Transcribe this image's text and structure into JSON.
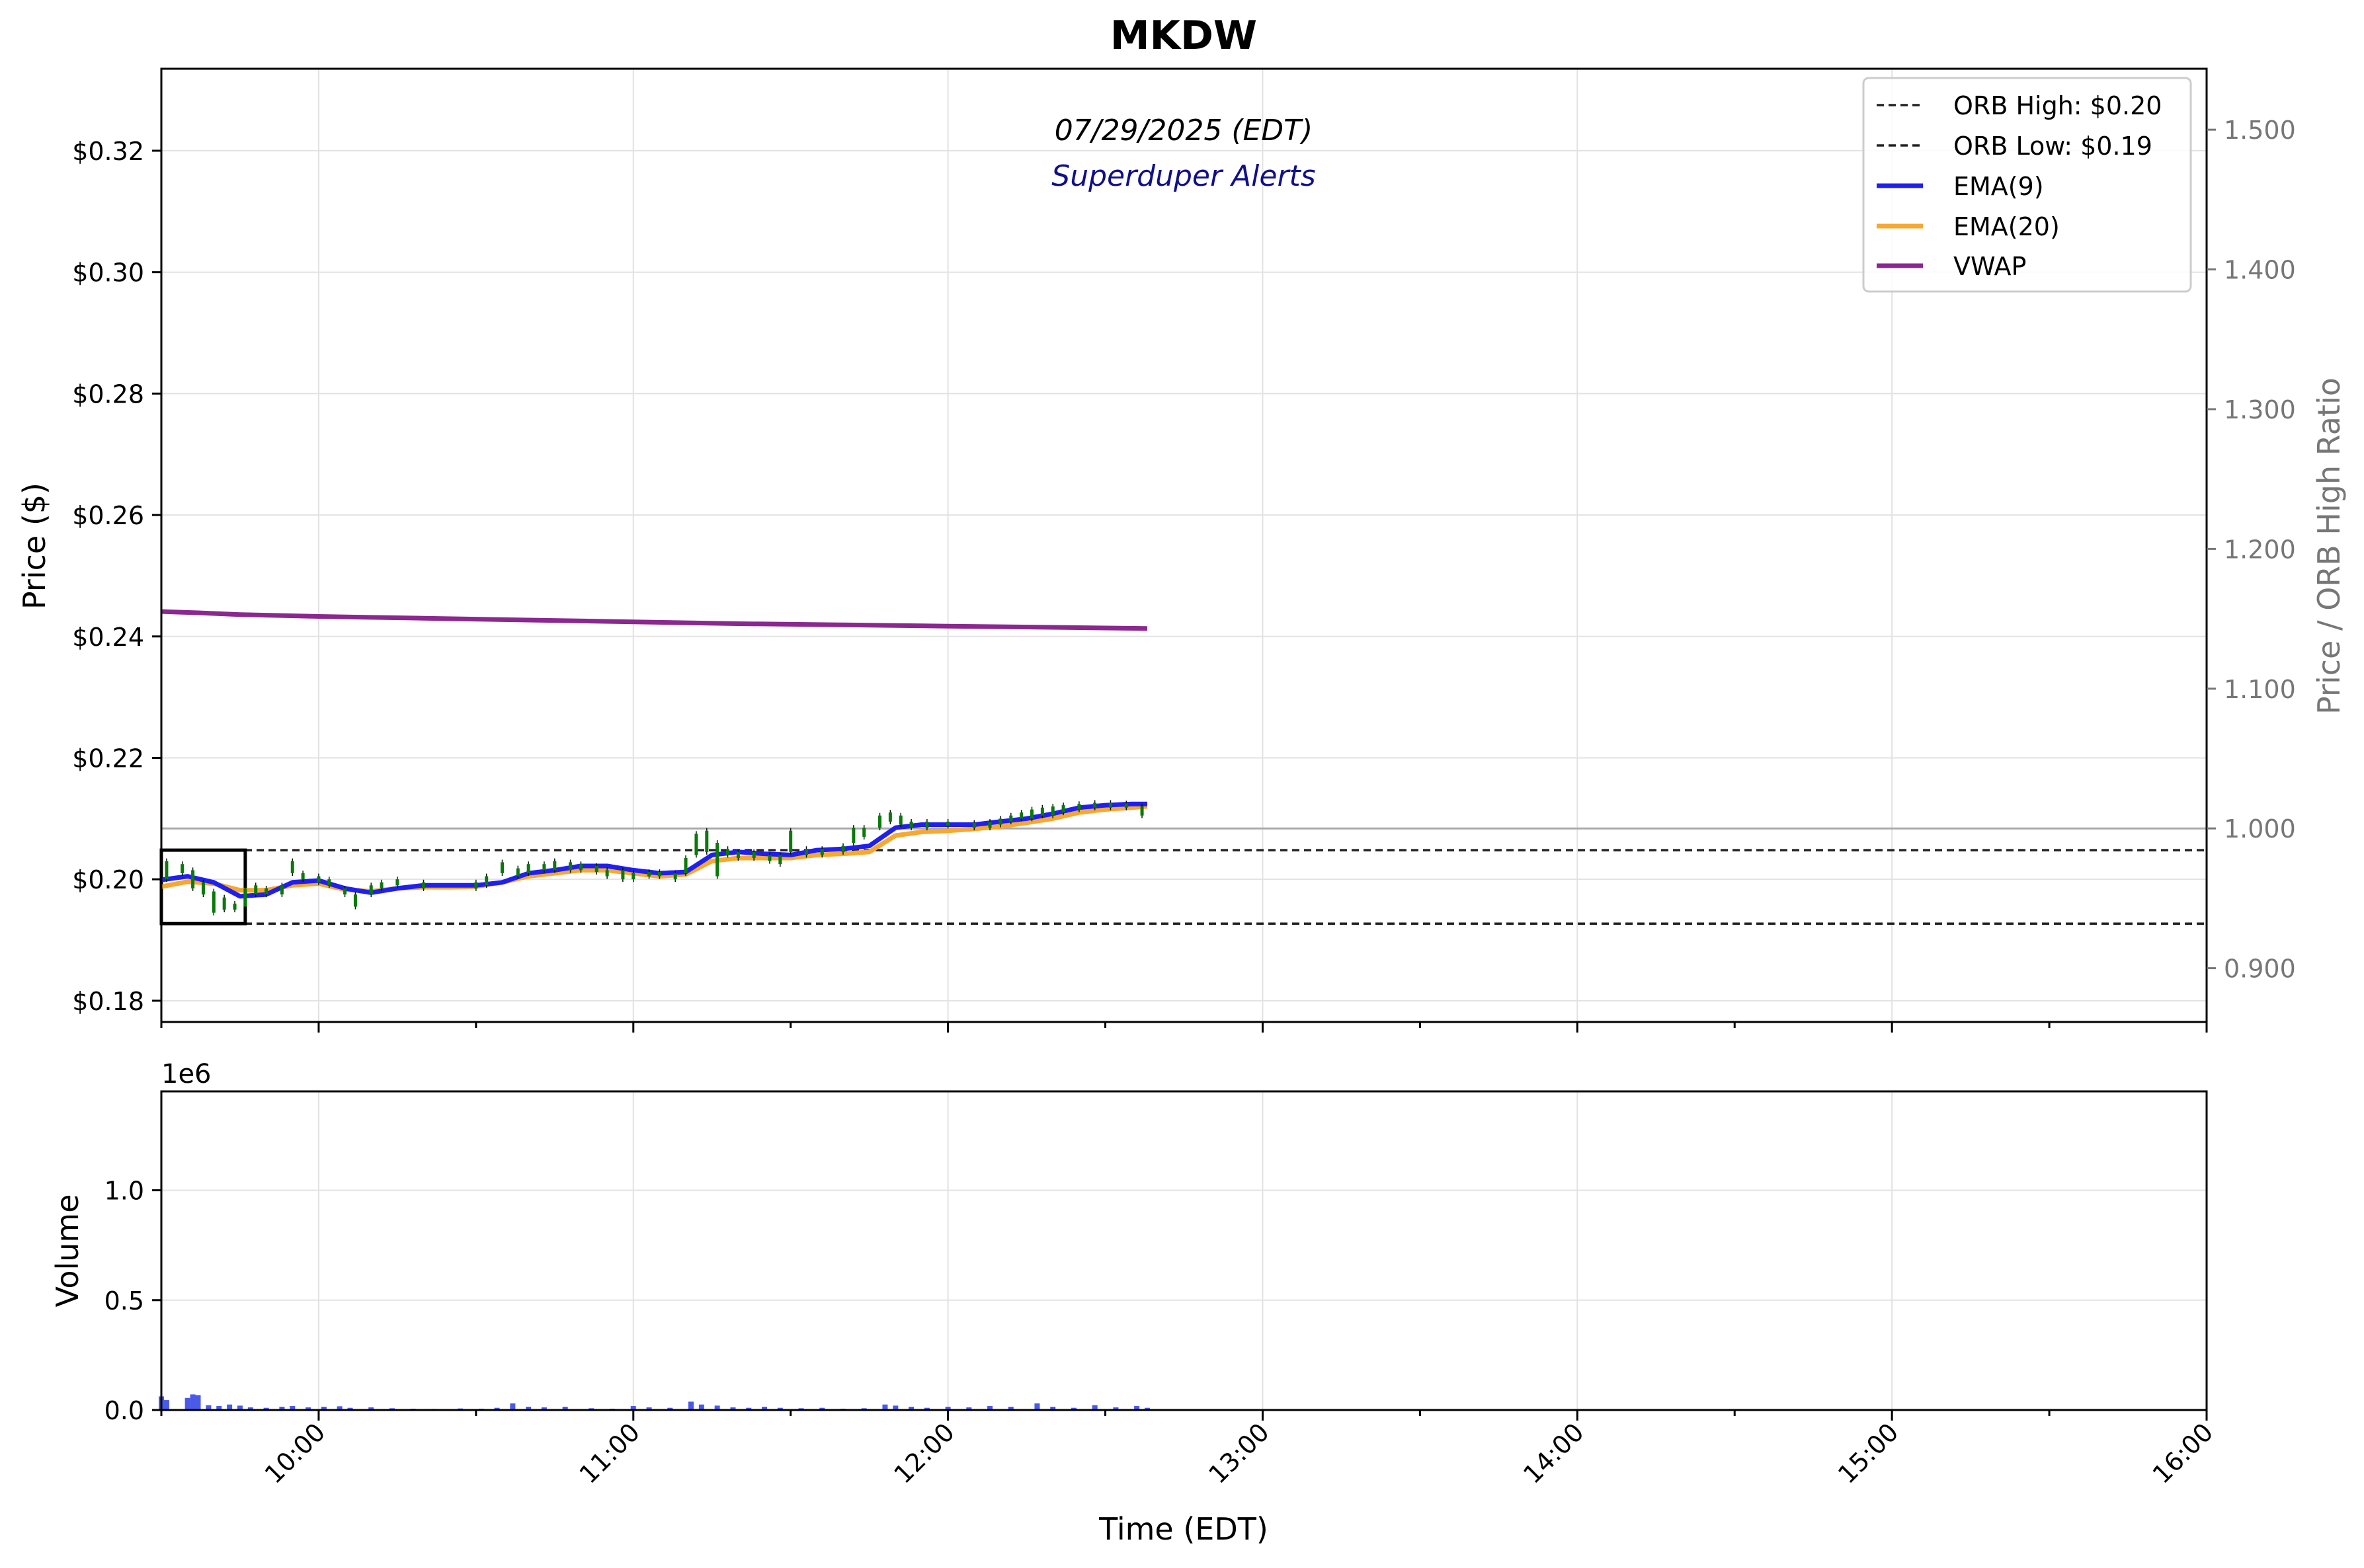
{
  "chart_data": {
    "type": "line",
    "title": "MKDW",
    "subtitle": "07/29/2025 (EDT)",
    "watermark": "Superduper Alerts",
    "colors": {
      "ema9": "#2020ee",
      "ema20": "#f8a830",
      "vwap": "#8a2890",
      "up": "#0a7a0a",
      "down": "#cc1010",
      "volume": "#4a5ae8",
      "subtitle_color": "#000000",
      "watermark_color": "#10108a",
      "ratio_axis_color": "#777777"
    },
    "x_axis": {
      "label": "Time (EDT)",
      "range": [
        "09:30",
        "16:00"
      ],
      "ticks": [
        "10:00",
        "11:00",
        "12:00",
        "13:00",
        "14:00",
        "15:00",
        "16:00"
      ]
    },
    "price_axis": {
      "label": "Price ($)",
      "range": [
        0.1765,
        0.3335
      ],
      "ticks": [
        {
          "value": 0.18,
          "label": "$0.18"
        },
        {
          "value": 0.2,
          "label": "$0.20"
        },
        {
          "value": 0.22,
          "label": "$0.22"
        },
        {
          "value": 0.24,
          "label": "$0.24"
        },
        {
          "value": 0.26,
          "label": "$0.26"
        },
        {
          "value": 0.28,
          "label": "$0.28"
        },
        {
          "value": 0.3,
          "label": "$0.30"
        },
        {
          "value": 0.32,
          "label": "$0.32"
        }
      ]
    },
    "ratio_axis": {
      "label": "Price / ORB High Ratio",
      "range": [
        0.8615,
        1.5436
      ],
      "ticks": [
        {
          "value": 0.9,
          "label": "0.900"
        },
        {
          "value": 1.0,
          "label": "1.000"
        },
        {
          "value": 1.1,
          "label": "1.100"
        },
        {
          "value": 1.2,
          "label": "1.200"
        },
        {
          "value": 1.3,
          "label": "1.300"
        },
        {
          "value": 1.4,
          "label": "1.400"
        },
        {
          "value": 1.5,
          "label": "1.500"
        }
      ]
    },
    "volume_axis": {
      "label": "Volume",
      "multiplier": "1e6",
      "range": [
        0,
        1.45
      ],
      "ticks": [
        {
          "value": 0.0,
          "label": "0.0"
        },
        {
          "value": 0.5,
          "label": "0.5"
        },
        {
          "value": 1.0,
          "label": "1.0"
        }
      ]
    },
    "legend": {
      "placement": "top-right",
      "entries": [
        {
          "key": "orb_high",
          "label": "ORB High: $0.20"
        },
        {
          "key": "orb_low",
          "label": "ORB Low: $0.19"
        },
        {
          "key": "ema9",
          "label": "EMA(9)"
        },
        {
          "key": "ema20",
          "label": "EMA(20)"
        },
        {
          "key": "vwap",
          "label": "VWAP"
        }
      ]
    },
    "orb": {
      "high": 0.2048,
      "low": 0.1927,
      "start": "09:30",
      "end": "09:46"
    },
    "ratio_reference": 1.0,
    "grid": true,
    "ema9": [
      [
        "09:30",
        0.1999
      ],
      [
        "09:35",
        0.2005
      ],
      [
        "09:40",
        0.1995
      ],
      [
        "09:45",
        0.1972
      ],
      [
        "09:50",
        0.1975
      ],
      [
        "09:55",
        0.1995
      ],
      [
        "10:00",
        0.1998
      ],
      [
        "10:05",
        0.1985
      ],
      [
        "10:10",
        0.1978
      ],
      [
        "10:15",
        0.1985
      ],
      [
        "10:20",
        0.199
      ],
      [
        "10:25",
        0.199
      ],
      [
        "10:30",
        0.199
      ],
      [
        "10:35",
        0.1995
      ],
      [
        "10:40",
        0.201
      ],
      [
        "10:45",
        0.2015
      ],
      [
        "10:50",
        0.2022
      ],
      [
        "10:55",
        0.2022
      ],
      [
        "11:00",
        0.2015
      ],
      [
        "11:05",
        0.201
      ],
      [
        "11:10",
        0.2012
      ],
      [
        "11:15",
        0.204
      ],
      [
        "11:20",
        0.2045
      ],
      [
        "11:25",
        0.2042
      ],
      [
        "11:30",
        0.204
      ],
      [
        "11:35",
        0.2048
      ],
      [
        "11:40",
        0.205
      ],
      [
        "11:45",
        0.2055
      ],
      [
        "11:50",
        0.2085
      ],
      [
        "11:55",
        0.209
      ],
      [
        "12:00",
        0.209
      ],
      [
        "12:05",
        0.209
      ],
      [
        "12:10",
        0.2095
      ],
      [
        "12:15",
        0.21
      ],
      [
        "12:20",
        0.2108
      ],
      [
        "12:25",
        0.2118
      ],
      [
        "12:30",
        0.2122
      ],
      [
        "12:35",
        0.2124
      ],
      [
        "12:38",
        0.2124
      ]
    ],
    "ema20": [
      [
        "09:30",
        0.1988
      ],
      [
        "09:35",
        0.1996
      ],
      [
        "09:40",
        0.1993
      ],
      [
        "09:45",
        0.1982
      ],
      [
        "09:50",
        0.1982
      ],
      [
        "09:55",
        0.199
      ],
      [
        "10:00",
        0.1993
      ],
      [
        "10:05",
        0.1983
      ],
      [
        "10:10",
        0.198
      ],
      [
        "10:15",
        0.1985
      ],
      [
        "10:20",
        0.1987
      ],
      [
        "10:25",
        0.1987
      ],
      [
        "10:30",
        0.1988
      ],
      [
        "10:35",
        0.1995
      ],
      [
        "10:40",
        0.2005
      ],
      [
        "10:45",
        0.201
      ],
      [
        "10:50",
        0.2015
      ],
      [
        "10:55",
        0.2015
      ],
      [
        "11:00",
        0.201
      ],
      [
        "11:05",
        0.2005
      ],
      [
        "11:10",
        0.2008
      ],
      [
        "11:15",
        0.203
      ],
      [
        "11:20",
        0.2035
      ],
      [
        "11:25",
        0.2035
      ],
      [
        "11:30",
        0.2035
      ],
      [
        "11:35",
        0.204
      ],
      [
        "11:40",
        0.2042
      ],
      [
        "11:45",
        0.2045
      ],
      [
        "11:50",
        0.2072
      ],
      [
        "11:55",
        0.2078
      ],
      [
        "12:00",
        0.208
      ],
      [
        "12:05",
        0.2083
      ],
      [
        "12:10",
        0.2087
      ],
      [
        "12:15",
        0.2093
      ],
      [
        "12:20",
        0.21
      ],
      [
        "12:25",
        0.211
      ],
      [
        "12:30",
        0.2115
      ],
      [
        "12:35",
        0.2118
      ],
      [
        "12:38",
        0.212
      ]
    ],
    "vwap": [
      [
        "09:30",
        0.2441
      ],
      [
        "09:37",
        0.2439
      ],
      [
        "09:45",
        0.2436
      ],
      [
        "10:00",
        0.2433
      ],
      [
        "10:20",
        0.243
      ],
      [
        "10:40",
        0.2427
      ],
      [
        "11:00",
        0.2424
      ],
      [
        "11:20",
        0.2421
      ],
      [
        "11:40",
        0.2419
      ],
      [
        "12:00",
        0.2417
      ],
      [
        "12:20",
        0.2415
      ],
      [
        "12:38",
        0.2413
      ]
    ],
    "candles": [
      [
        "09:31",
        0.203,
        0.2
      ],
      [
        "09:34",
        0.2025,
        0.201
      ],
      [
        "09:36",
        0.2015,
        0.1985
      ],
      [
        "09:38",
        0.1995,
        0.1975
      ],
      [
        "09:40",
        0.198,
        0.1945
      ],
      [
        "09:42",
        0.197,
        0.195
      ],
      [
        "09:44",
        0.196,
        0.195
      ],
      [
        "09:46",
        0.1985,
        0.1955
      ],
      [
        "09:48",
        0.199,
        0.1975
      ],
      [
        "09:50",
        0.1985,
        0.1975
      ],
      [
        "09:53",
        0.199,
        0.1975
      ],
      [
        "09:55",
        0.203,
        0.201
      ],
      [
        "09:57",
        0.201,
        0.2
      ],
      [
        "10:00",
        0.2005,
        0.1995
      ],
      [
        "10:02",
        0.2,
        0.199
      ],
      [
        "10:05",
        0.1985,
        0.1975
      ],
      [
        "10:07",
        0.1975,
        0.1955
      ],
      [
        "10:10",
        0.199,
        0.1975
      ],
      [
        "10:12",
        0.1995,
        0.1985
      ],
      [
        "10:15",
        0.2,
        0.199
      ],
      [
        "10:20",
        0.1995,
        0.1985
      ],
      [
        "10:30",
        0.1995,
        0.1985
      ],
      [
        "10:32",
        0.2005,
        0.199
      ],
      [
        "10:35",
        0.2028,
        0.201
      ],
      [
        "10:38",
        0.2018,
        0.2005
      ],
      [
        "10:40",
        0.2025,
        0.201
      ],
      [
        "10:43",
        0.2025,
        0.2015
      ],
      [
        "10:45",
        0.203,
        0.2015
      ],
      [
        "10:48",
        0.2028,
        0.2015
      ],
      [
        "10:50",
        0.2025,
        0.2015
      ],
      [
        "10:53",
        0.2022,
        0.2012
      ],
      [
        "10:55",
        0.2015,
        0.2005
      ],
      [
        "10:58",
        0.2015,
        0.2
      ],
      [
        "11:00",
        0.201,
        0.2
      ],
      [
        "11:03",
        0.2012,
        0.2005
      ],
      [
        "11:05",
        0.2012,
        0.2005
      ],
      [
        "11:08",
        0.201,
        0.2
      ],
      [
        "11:10",
        0.2035,
        0.201
      ],
      [
        "11:12",
        0.2075,
        0.204
      ],
      [
        "11:14",
        0.208,
        0.2045
      ],
      [
        "11:16",
        0.206,
        0.2005
      ],
      [
        "11:18",
        0.205,
        0.204
      ],
      [
        "11:20",
        0.2045,
        0.2035
      ],
      [
        "11:23",
        0.2045,
        0.2035
      ],
      [
        "11:26",
        0.204,
        0.203
      ],
      [
        "11:28",
        0.204,
        0.2025
      ],
      [
        "11:30",
        0.208,
        0.2045
      ],
      [
        "11:33",
        0.205,
        0.204
      ],
      [
        "11:36",
        0.205,
        0.204
      ],
      [
        "11:40",
        0.2055,
        0.2045
      ],
      [
        "11:42",
        0.2085,
        0.206
      ],
      [
        "11:44",
        0.2085,
        0.207
      ],
      [
        "11:47",
        0.2105,
        0.2085
      ],
      [
        "11:49",
        0.211,
        0.2095
      ],
      [
        "11:51",
        0.2105,
        0.209
      ],
      [
        "11:53",
        0.2095,
        0.2085
      ],
      [
        "11:56",
        0.2095,
        0.2085
      ],
      [
        "12:00",
        0.2095,
        0.2088
      ],
      [
        "12:05",
        0.2093,
        0.2085
      ],
      [
        "12:08",
        0.2095,
        0.2085
      ],
      [
        "12:10",
        0.21,
        0.209
      ],
      [
        "12:12",
        0.2105,
        0.2095
      ],
      [
        "12:14",
        0.211,
        0.21
      ],
      [
        "12:16",
        0.2115,
        0.21
      ],
      [
        "12:18",
        0.2118,
        0.2105
      ],
      [
        "12:20",
        0.212,
        0.2105
      ],
      [
        "12:22",
        0.2122,
        0.211
      ],
      [
        "12:25",
        0.2124,
        0.2115
      ],
      [
        "12:28",
        0.2126,
        0.2118
      ],
      [
        "12:31",
        0.2126,
        0.2118
      ],
      [
        "12:34",
        0.2125,
        0.2118
      ],
      [
        "12:37",
        0.212,
        0.2105
      ]
    ],
    "volume": [
      [
        "09:30",
        0.062
      ],
      [
        "09:31",
        0.045
      ],
      [
        "09:35",
        0.055
      ],
      [
        "09:36",
        0.071
      ],
      [
        "09:37",
        0.068
      ],
      [
        "09:39",
        0.022
      ],
      [
        "09:41",
        0.018
      ],
      [
        "09:43",
        0.025
      ],
      [
        "09:45",
        0.02
      ],
      [
        "09:47",
        0.012
      ],
      [
        "09:50",
        0.01
      ],
      [
        "09:53",
        0.015
      ],
      [
        "09:55",
        0.018
      ],
      [
        "09:58",
        0.012
      ],
      [
        "10:01",
        0.015
      ],
      [
        "10:04",
        0.017
      ],
      [
        "10:06",
        0.01
      ],
      [
        "10:10",
        0.012
      ],
      [
        "10:14",
        0.008
      ],
      [
        "10:18",
        0.006
      ],
      [
        "10:22",
        0.005
      ],
      [
        "10:27",
        0.007
      ],
      [
        "10:31",
        0.006
      ],
      [
        "10:34",
        0.01
      ],
      [
        "10:37",
        0.03
      ],
      [
        "10:40",
        0.015
      ],
      [
        "10:43",
        0.012
      ],
      [
        "10:47",
        0.015
      ],
      [
        "10:52",
        0.008
      ],
      [
        "10:56",
        0.006
      ],
      [
        "11:00",
        0.018
      ],
      [
        "11:03",
        0.012
      ],
      [
        "11:07",
        0.01
      ],
      [
        "11:11",
        0.038
      ],
      [
        "11:13",
        0.025
      ],
      [
        "11:16",
        0.02
      ],
      [
        "11:19",
        0.012
      ],
      [
        "11:22",
        0.01
      ],
      [
        "11:25",
        0.015
      ],
      [
        "11:28",
        0.01
      ],
      [
        "11:32",
        0.008
      ],
      [
        "11:36",
        0.01
      ],
      [
        "11:40",
        0.006
      ],
      [
        "11:44",
        0.008
      ],
      [
        "11:48",
        0.025
      ],
      [
        "11:50",
        0.02
      ],
      [
        "11:53",
        0.015
      ],
      [
        "11:56",
        0.01
      ],
      [
        "12:00",
        0.015
      ],
      [
        "12:04",
        0.012
      ],
      [
        "12:08",
        0.018
      ],
      [
        "12:12",
        0.015
      ],
      [
        "12:17",
        0.03
      ],
      [
        "12:20",
        0.015
      ],
      [
        "12:24",
        0.01
      ],
      [
        "12:28",
        0.022
      ],
      [
        "12:32",
        0.012
      ],
      [
        "12:36",
        0.018
      ],
      [
        "12:38",
        0.01
      ]
    ]
  }
}
